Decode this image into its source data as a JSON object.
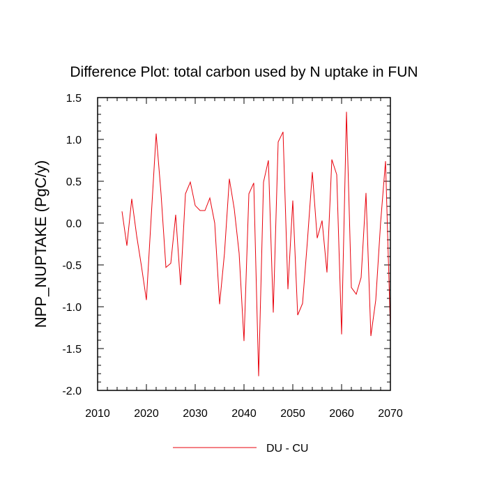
{
  "chart_data": {
    "type": "line",
    "title": "Difference Plot: total carbon used by N uptake in FUN",
    "xlabel": "",
    "ylabel": "NPP_NUPTAKE  (PgC/y)",
    "xlim": [
      2010,
      2070
    ],
    "ylim": [
      -2.0,
      1.5
    ],
    "x_ticks": [
      2010,
      2020,
      2030,
      2040,
      2050,
      2060,
      2070
    ],
    "y_ticks": [
      1.5,
      1.0,
      0.5,
      0.0,
      -0.5,
      -1.0,
      -1.5,
      -2.0
    ],
    "x_tick_labels": [
      "2010",
      "2020",
      "2030",
      "2040",
      "2050",
      "2060",
      "2070"
    ],
    "y_tick_labels": [
      "1.5",
      "1.0",
      "0.5",
      "0.0",
      "-0.5",
      "-1.0",
      "-1.5",
      "-2.0"
    ],
    "grid": false,
    "legend_position": "bottom",
    "series": [
      {
        "name": "DU - CU",
        "color": "#e8000b",
        "x": [
          2015,
          2016,
          2017,
          2018,
          2019,
          2020,
          2021,
          2022,
          2023,
          2024,
          2025,
          2026,
          2027,
          2028,
          2029,
          2030,
          2031,
          2032,
          2033,
          2034,
          2035,
          2036,
          2037,
          2038,
          2039,
          2040,
          2041,
          2042,
          2043,
          2044,
          2045,
          2046,
          2047,
          2048,
          2049,
          2050,
          2051,
          2052,
          2053,
          2054,
          2055,
          2056,
          2057,
          2058,
          2059,
          2060,
          2061,
          2062,
          2063,
          2064,
          2065,
          2066,
          2067,
          2068,
          2069,
          2070
        ],
        "y": [
          0.14,
          -0.27,
          0.29,
          -0.15,
          -0.52,
          -0.92,
          0.09,
          1.07,
          0.35,
          -0.53,
          -0.48,
          0.1,
          -0.74,
          0.35,
          0.49,
          0.21,
          0.15,
          0.15,
          0.3,
          0.0,
          -0.97,
          -0.36,
          0.53,
          0.17,
          -0.36,
          -1.41,
          0.35,
          0.48,
          -1.83,
          0.49,
          0.75,
          -1.07,
          0.97,
          1.09,
          -0.79,
          0.27,
          -1.1,
          -0.96,
          -0.21,
          0.61,
          -0.18,
          0.03,
          -0.59,
          0.76,
          0.58,
          -1.33,
          1.33,
          -0.77,
          -0.85,
          -0.65,
          0.36,
          -1.35,
          -0.92,
          0.01,
          0.74,
          -1.27
        ]
      }
    ]
  }
}
